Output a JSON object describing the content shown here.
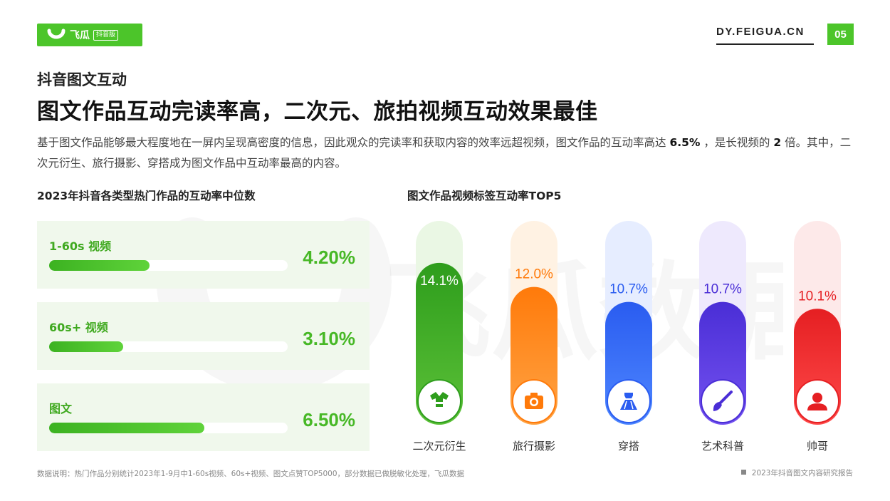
{
  "brand": {
    "name": "飞瓜",
    "badge": "抖音版",
    "site": "DY.FEIGUA.CN",
    "page_number": "05",
    "watermark": "飞瓜数据",
    "accent": "#4cc52a"
  },
  "section_title": "抖音图文互动",
  "headline": "图文作品互动完读率高，二次元、旅拍视频互动效果最佳",
  "description": {
    "part1": "基于图文作品能够最大程度地在一屏内呈现高密度的信息，因此观众的完读率和获取内容的效率远超视频，图文作品的互动率高达",
    "rate": "6.5%",
    "part2": "，是长视频的",
    "times": "2",
    "part3": "倍。其中，二次元衍生、旅行摄影、穿搭成为图文作品中互动率最高的内容。"
  },
  "chart_data": [
    {
      "type": "bar",
      "orientation": "horizontal",
      "title": "2023年抖音各类型热门作品的互动率中位数",
      "categories": [
        "1-60s 视频",
        "60s+ 视频",
        "图文"
      ],
      "values": [
        4.2,
        3.1,
        6.5
      ],
      "value_labels": [
        "4.20%",
        "3.10%",
        "6.50%"
      ],
      "unit": "%",
      "xlim": [
        0,
        10
      ],
      "colors": {
        "bar": "#4cc52a",
        "label": "#3fa91f"
      }
    },
    {
      "type": "bar",
      "orientation": "vertical",
      "title": "图文作品视频标签互动率TOP5",
      "categories": [
        "二次元衍生",
        "旅行摄影",
        "穿搭",
        "艺术科普",
        "帅哥"
      ],
      "values": [
        14.1,
        12.0,
        10.7,
        10.7,
        10.1
      ],
      "value_labels": [
        "14.1%",
        "12.0%",
        "10.7%",
        "10.7%",
        "10.1%"
      ],
      "unit": "%",
      "ylim": [
        0,
        18
      ],
      "icons": [
        "robe-icon",
        "camera-icon",
        "dress-icon",
        "paintbrush-icon",
        "person-icon"
      ],
      "colors": [
        "#2e9d1c",
        "#ff7a0a",
        "#2a5cf0",
        "#4a2ed6",
        "#e51f22"
      ],
      "track_colors": [
        "#eaf7e4",
        "#fff2e3",
        "#e6edff",
        "#eee9fd",
        "#fde9e9"
      ],
      "gradient_ends": [
        "#5cc138",
        "#ffa445",
        "#4e87ff",
        "#7452f0",
        "#ff4a4a"
      ]
    }
  ],
  "footnote": "数据说明：热门作品分别统计2023年1-9月中1-60s视频、60s+视频、图文点赞TOP5000，部分数据已做脱敏化处理，飞瓜数据",
  "report_title": "2023年抖音图文内容研究报告"
}
